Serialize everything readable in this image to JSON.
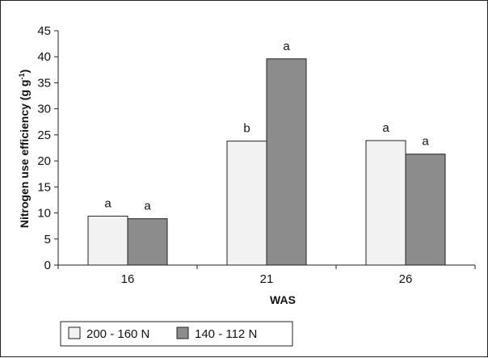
{
  "chart_data": {
    "type": "bar",
    "title": "",
    "xlabel": "WAS",
    "ylabel": "Nitrogen use efficiency (g g",
    "ylabel_sup": "-1",
    "ylabel_close": ")",
    "ylim": [
      0,
      45
    ],
    "yticks": [
      0,
      5,
      10,
      15,
      20,
      25,
      30,
      35,
      40,
      45
    ],
    "categories": [
      "16",
      "21",
      "26"
    ],
    "series": [
      {
        "name": "200 - 160 N",
        "values": [
          9.4,
          23.8,
          23.9
        ],
        "letters": [
          "a",
          "b",
          "a"
        ],
        "color": "#f2f2f2"
      },
      {
        "name": "140 - 112 N",
        "values": [
          8.9,
          39.6,
          21.3
        ],
        "letters": [
          "a",
          "a",
          "a"
        ],
        "color": "#8c8c8c"
      }
    ],
    "grid": false,
    "legend_position": "bottom-left"
  }
}
